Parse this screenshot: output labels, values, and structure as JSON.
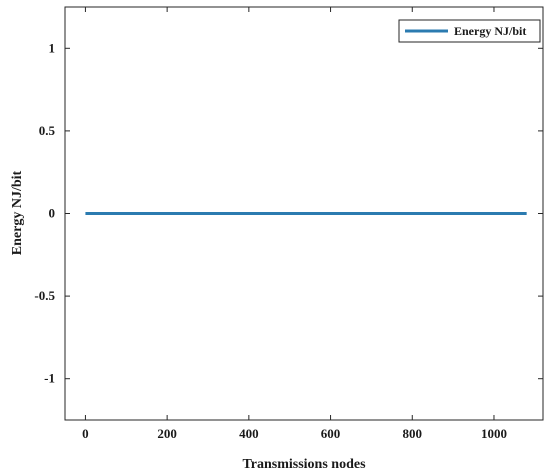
{
  "chart_data": {
    "type": "line",
    "title": "",
    "xlabel": "Transmissions nodes",
    "ylabel": "Energy NJ/bit",
    "xlim": [
      -50,
      1120
    ],
    "ylim": [
      -1.25,
      1.25
    ],
    "xticks": [
      0,
      200,
      400,
      600,
      800,
      1000
    ],
    "yticks": [
      1,
      0.5,
      0,
      -0.5,
      -1
    ],
    "xtick_labels": [
      "0",
      "200",
      "400",
      "600",
      "800",
      "1000"
    ],
    "ytick_labels": [
      "1",
      "0.5",
      "0",
      "-0.5",
      "-1"
    ],
    "grid": false,
    "legend_position": "top-right",
    "series": [
      {
        "name": "Energy NJ/bit",
        "color": "#2b7bb0",
        "x": [
          0,
          1080
        ],
        "y": [
          0,
          0
        ]
      }
    ]
  }
}
